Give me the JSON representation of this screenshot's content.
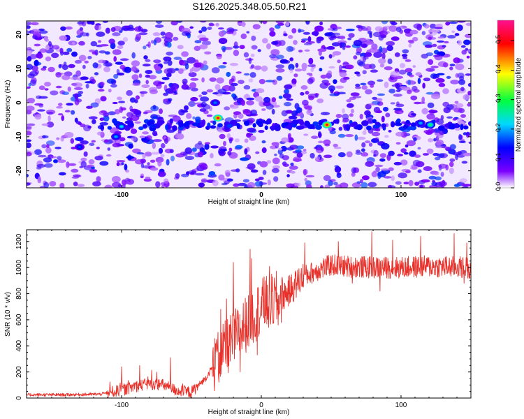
{
  "title": "S126.2025.348.05.50.R21",
  "chart_data": [
    {
      "type": "heatmap",
      "xlabel": "Height of straight line (km)",
      "ylabel": "Frequency (Hz)",
      "xlim": [
        -168,
        150
      ],
      "ylim": [
        -25,
        24
      ],
      "xticks": [
        "-100",
        "0",
        "100"
      ],
      "xtick_values": [
        -100,
        0,
        100
      ],
      "yticks": [
        "-20",
        "-10",
        "0",
        "10",
        "20"
      ],
      "ytick_values": [
        -20,
        -10,
        0,
        10,
        20
      ],
      "signal_band": {
        "frequency_hz": -6.5,
        "starts_at_km": -110
      },
      "hotspots": [
        {
          "x_km": -100,
          "freq_hz": -7,
          "amp": 0.22
        },
        {
          "x_km": -104,
          "freq_hz": -10,
          "amp": 0.2
        },
        {
          "x_km": -130,
          "freq_hz": -13,
          "amp": 0.16
        },
        {
          "x_km": -31,
          "freq_hz": -4.5,
          "amp": 0.5
        },
        {
          "x_km": -33,
          "freq_hz": 0,
          "amp": 0.18
        },
        {
          "x_km": 47,
          "freq_hz": -6.5,
          "amp": 0.5
        },
        {
          "x_km": 121,
          "freq_hz": -6.5,
          "amp": 0.28
        },
        {
          "x_km": 114,
          "freq_hz": -6,
          "amp": 0.2
        }
      ],
      "colorbar": {
        "label": "Normalized spectral amplitude",
        "range": [
          0,
          0.57
        ],
        "ticks": [
          "0.0",
          "0.1",
          "0.2",
          "0.3",
          "0.4",
          "0.5"
        ],
        "tick_values": [
          0,
          0.1,
          0.2,
          0.3,
          0.4,
          0.5
        ],
        "colors": [
          "#ffffff",
          "#7a00ff",
          "#0000ff",
          "#00d8ff",
          "#00ff40",
          "#ffff00",
          "#ff0000",
          "#ff1090"
        ]
      }
    },
    {
      "type": "line",
      "xlabel": "Height of straight line (km)",
      "ylabel": "SNR (10 * v/v)",
      "xlim": [
        -168,
        150
      ],
      "ylim": [
        0,
        1290
      ],
      "xticks": [
        "-100",
        "0",
        "100"
      ],
      "xtick_values": [
        -100,
        0,
        100
      ],
      "yticks": [
        "0",
        "200",
        "400",
        "600",
        "800",
        "1000",
        "1200"
      ],
      "ytick_values": [
        0,
        200,
        400,
        600,
        800,
        1000,
        1200
      ],
      "series": [
        {
          "name": "SNR",
          "color": "#e8312a",
          "trend": {
            "x": [
              -168,
              -140,
              -115,
              -100,
              -90,
              -80,
              -70,
              -60,
              -50,
              -40,
              -30,
              -20,
              -10,
              0,
              10,
              20,
              30,
              40,
              50,
              60,
              80,
              100,
              120,
              150
            ],
            "y": [
              25,
              25,
              30,
              60,
              90,
              110,
              100,
              55,
              45,
              150,
              320,
              450,
              580,
              700,
              750,
              820,
              930,
              980,
              1020,
              1010,
              1000,
              1000,
              1010,
              1000
            ]
          },
          "peaks": [
            {
              "x": -100,
              "y": 240
            },
            {
              "x": -87,
              "y": 250
            },
            {
              "x": -65,
              "y": 310
            },
            {
              "x": -32,
              "y": 450
            },
            {
              "x": -29,
              "y": 680
            },
            {
              "x": -25,
              "y": 760
            },
            {
              "x": -20,
              "y": 1040
            },
            {
              "x": -8,
              "y": 1140
            },
            {
              "x": -7,
              "y": 1070
            },
            {
              "x": 2,
              "y": 930
            },
            {
              "x": 6,
              "y": 1010
            },
            {
              "x": 31,
              "y": 1190
            },
            {
              "x": 55,
              "y": 1200
            },
            {
              "x": 79,
              "y": 1275
            },
            {
              "x": 94,
              "y": 1210
            },
            {
              "x": 114,
              "y": 1240
            },
            {
              "x": 138,
              "y": 1260
            },
            {
              "x": 147,
              "y": 1190
            }
          ],
          "troughs": [
            {
              "x": -3,
              "y": 330
            },
            {
              "x": -15,
              "y": 200
            },
            {
              "x": 12,
              "y": 560
            },
            {
              "x": 65,
              "y": 880
            },
            {
              "x": 85,
              "y": 820
            },
            {
              "x": 145,
              "y": 880
            }
          ]
        }
      ]
    }
  ]
}
